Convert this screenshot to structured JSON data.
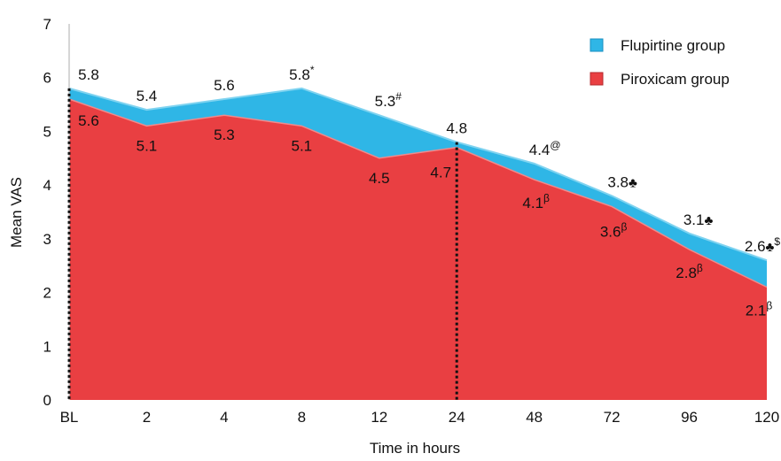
{
  "chart_data": {
    "type": "area",
    "xlabel": "Time in hours",
    "ylabel": "Mean VAS",
    "categories": [
      "BL",
      "2",
      "4",
      "8",
      "12",
      "24",
      "48",
      "72",
      "96",
      "120"
    ],
    "ylim": [
      0,
      7
    ],
    "yticks": [
      "0",
      "1",
      "2",
      "3",
      "4",
      "5",
      "6",
      "7"
    ],
    "grid": false,
    "legend_position": "top-right",
    "reference_line_at": "24",
    "series": [
      {
        "name": "Flupirtine group",
        "color": "#2fb6e6",
        "values": [
          5.8,
          5.4,
          5.6,
          5.8,
          5.3,
          4.8,
          4.4,
          3.8,
          3.1,
          2.6
        ],
        "labels": [
          "5.8",
          "5.4",
          "5.6",
          "5.8",
          "5.3",
          "4.8",
          "4.4",
          "3.8",
          "3.1",
          "2.6"
        ],
        "marks": [
          "",
          "",
          "",
          "*",
          "#",
          "",
          "@",
          "♣",
          "♣",
          "♣$"
        ]
      },
      {
        "name": "Piroxicam group",
        "color": "#e93f42",
        "values": [
          5.6,
          5.1,
          5.3,
          5.1,
          4.5,
          4.7,
          4.1,
          3.6,
          2.8,
          2.1
        ],
        "labels": [
          "5.6",
          "5.1",
          "5.3",
          "5.1",
          "4.5",
          "4.7",
          "4.1",
          "3.6",
          "2.8",
          "2.1"
        ],
        "marks": [
          "",
          "",
          "",
          "",
          "",
          "",
          "β",
          "β",
          "β",
          "β"
        ]
      }
    ]
  }
}
